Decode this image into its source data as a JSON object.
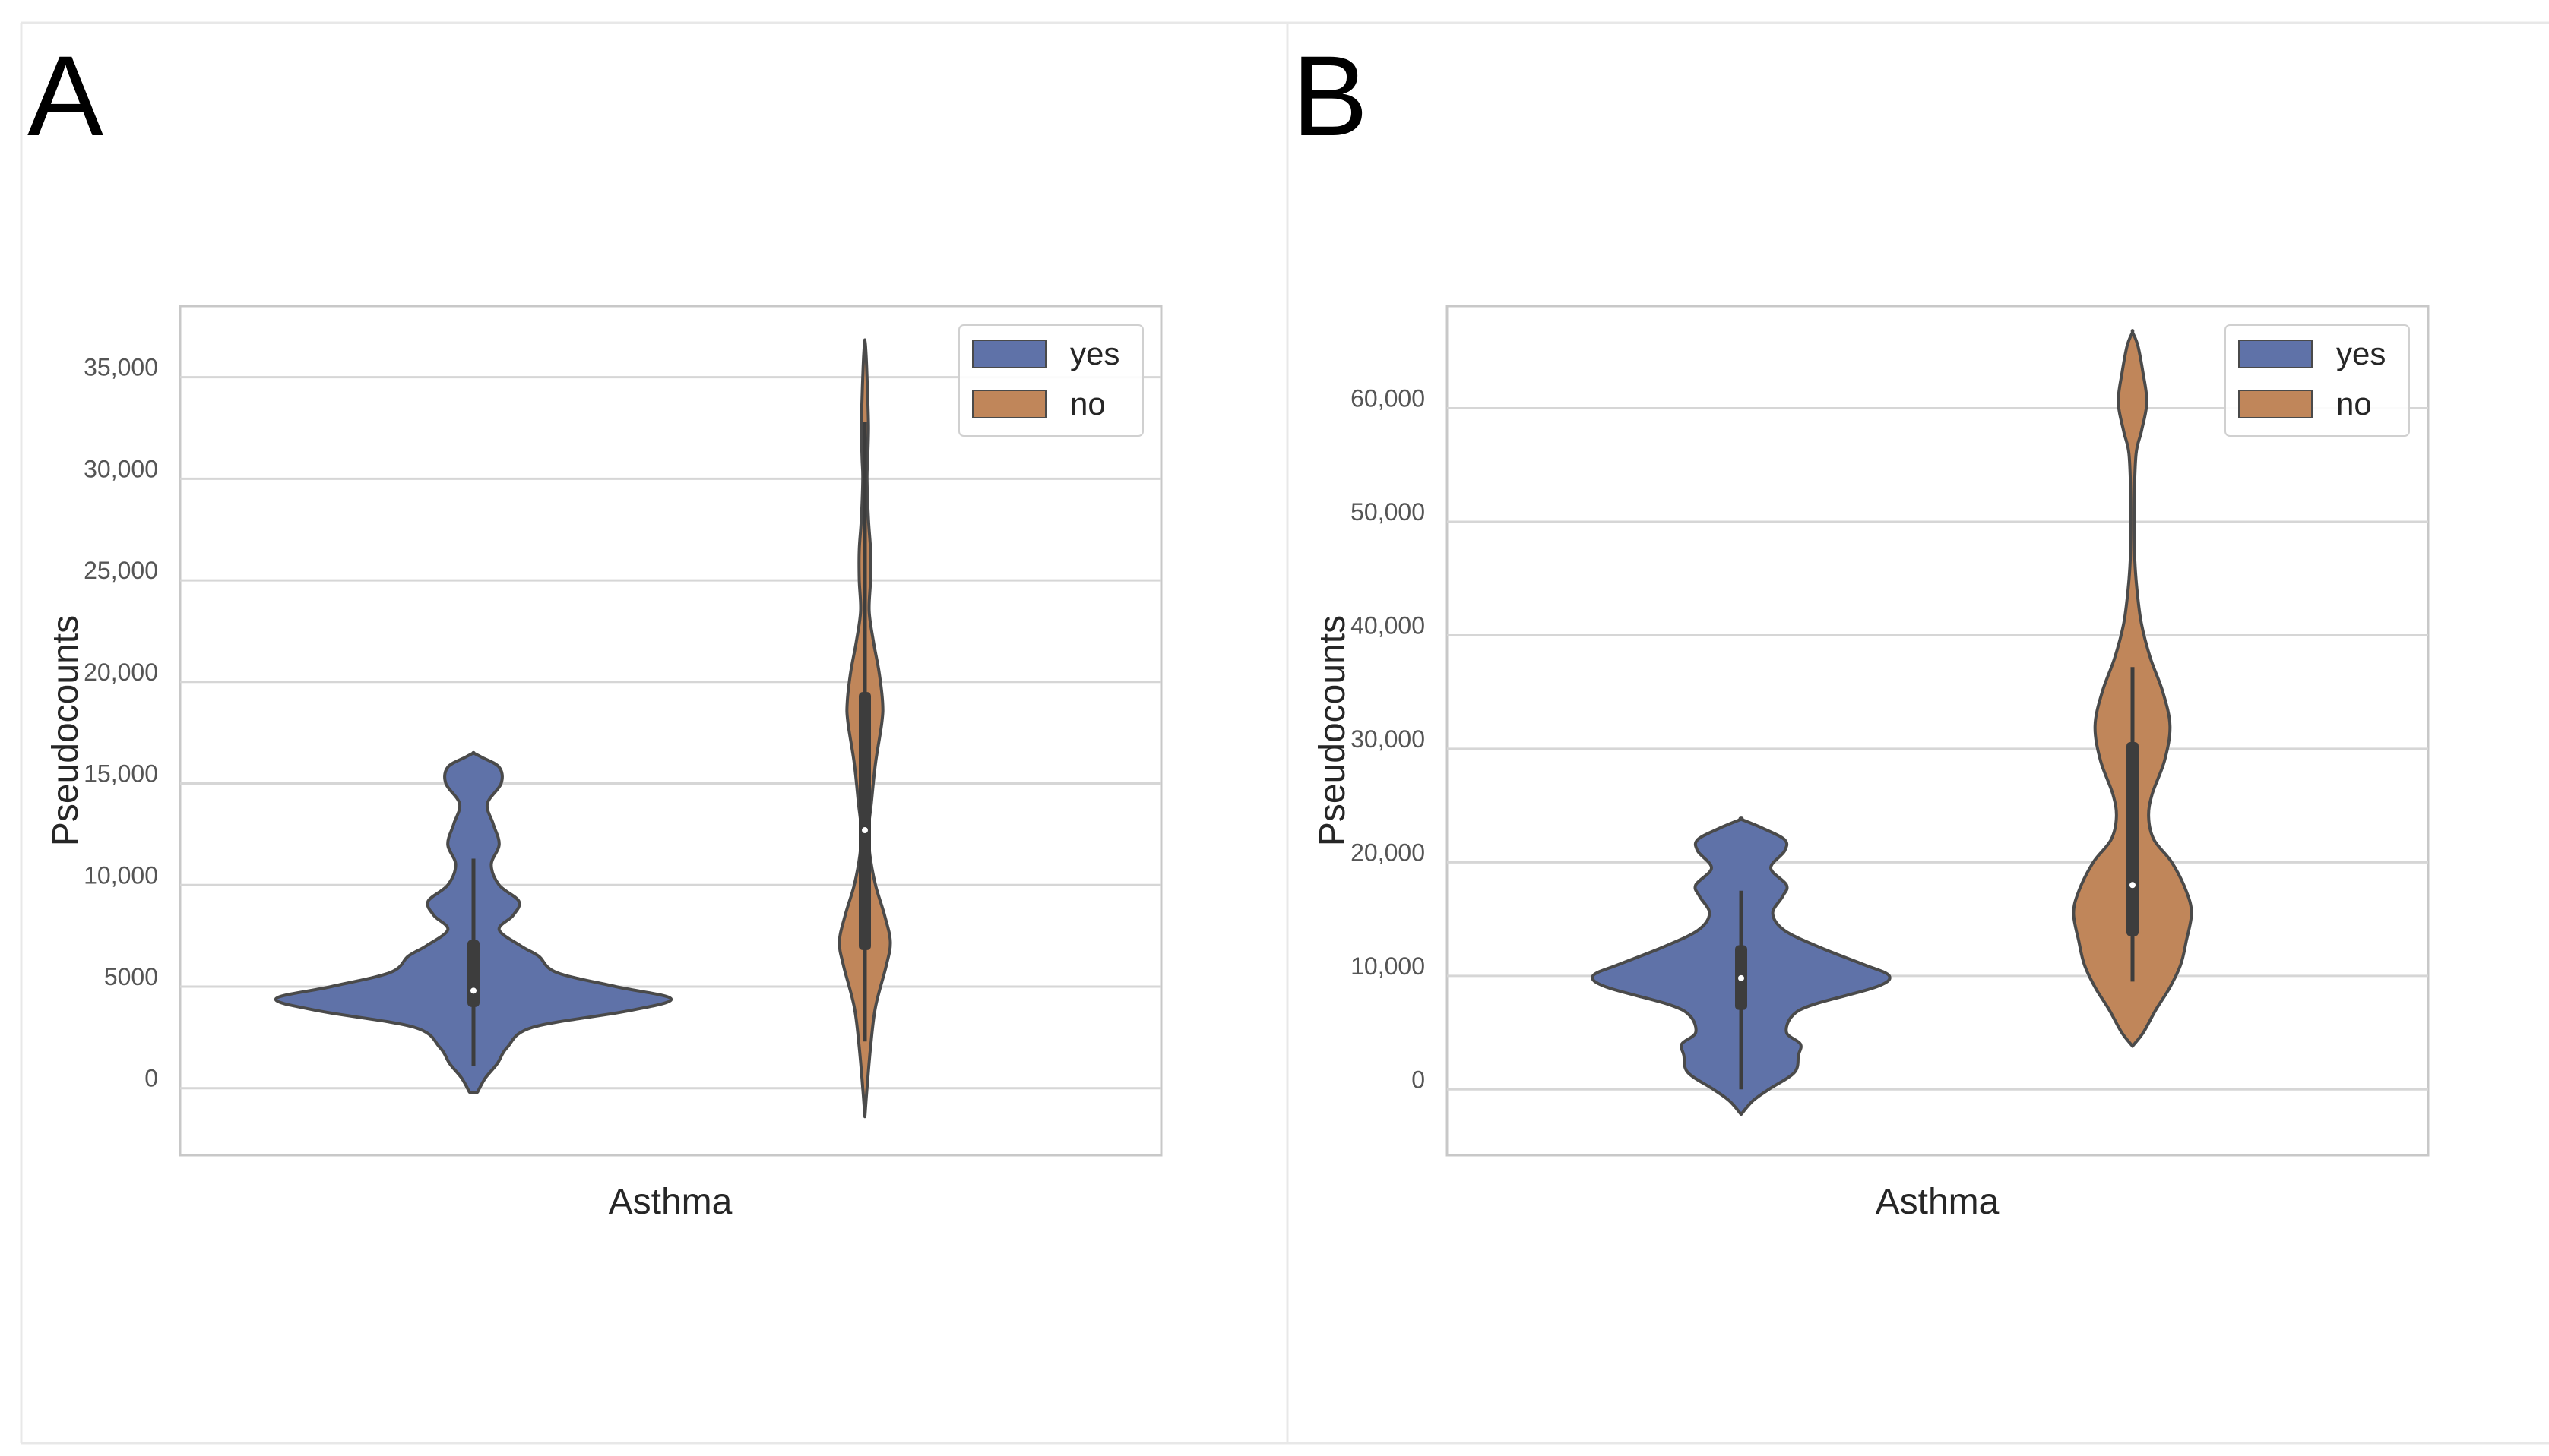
{
  "colors": {
    "yes": "#5f72a8",
    "no": "#c0865a",
    "edge": "#4a4a4a",
    "grid": "#d6d6d6",
    "frame": "#c8c8c8"
  },
  "chart_data": [
    {
      "panel": "A",
      "type": "violin",
      "xlabel": "Asthma",
      "ylabel": "Pseudocounts",
      "ylim": [
        -3300,
        38500
      ],
      "yticks": [
        0,
        5000,
        10000,
        15000,
        20000,
        25000,
        30000,
        35000
      ],
      "ytick_labels": [
        "0",
        "5000",
        "10,000",
        "15,000",
        "20,000",
        "25,000",
        "30,000",
        "35,000"
      ],
      "grid": true,
      "legend": {
        "position": "top-right",
        "entries": [
          "yes",
          "no"
        ]
      },
      "series": [
        {
          "name": "yes",
          "min": 1100,
          "q1": 4000,
          "median": 4800,
          "q3": 7300,
          "max": 11300,
          "range": [
            -200,
            16500
          ],
          "density": [
            [
              -200,
              0.02
            ],
            [
              500,
              0.06
            ],
            [
              1200,
              0.12
            ],
            [
              2000,
              0.17
            ],
            [
              3000,
              0.3
            ],
            [
              3800,
              0.78
            ],
            [
              4400,
              1.0
            ],
            [
              5000,
              0.72
            ],
            [
              5700,
              0.42
            ],
            [
              6500,
              0.33
            ],
            [
              7000,
              0.24
            ],
            [
              7800,
              0.13
            ],
            [
              8500,
              0.2
            ],
            [
              9200,
              0.23
            ],
            [
              10000,
              0.13
            ],
            [
              11000,
              0.09
            ],
            [
              12000,
              0.13
            ],
            [
              13000,
              0.1
            ],
            [
              14000,
              0.07
            ],
            [
              15000,
              0.14
            ],
            [
              15800,
              0.13
            ],
            [
              16300,
              0.04
            ],
            [
              16500,
              0.0
            ]
          ]
        },
        {
          "name": "no",
          "min": 2300,
          "q1": 6800,
          "median": 12700,
          "q3": 19500,
          "max": 32800,
          "range": [
            -1400,
            36800
          ],
          "density": [
            [
              -1400,
              0.0
            ],
            [
              0,
              0.03
            ],
            [
              2000,
              0.08
            ],
            [
              4000,
              0.15
            ],
            [
              6000,
              0.3
            ],
            [
              7200,
              0.36
            ],
            [
              8500,
              0.28
            ],
            [
              10000,
              0.15
            ],
            [
              11500,
              0.07
            ],
            [
              12700,
              0.05
            ],
            [
              14000,
              0.09
            ],
            [
              16000,
              0.15
            ],
            [
              18000,
              0.24
            ],
            [
              19000,
              0.25
            ],
            [
              20500,
              0.2
            ],
            [
              22000,
              0.12
            ],
            [
              23500,
              0.06
            ],
            [
              25000,
              0.08
            ],
            [
              26500,
              0.08
            ],
            [
              28000,
              0.05
            ],
            [
              30000,
              0.03
            ],
            [
              31000,
              0.04
            ],
            [
              32500,
              0.05
            ],
            [
              34000,
              0.04
            ],
            [
              35500,
              0.025
            ],
            [
              36500,
              0.01
            ],
            [
              36800,
              0.0
            ]
          ]
        }
      ]
    },
    {
      "panel": "B",
      "type": "violin",
      "xlabel": "Asthma",
      "ylabel": "Pseudocounts",
      "ylim": [
        -5800,
        69000
      ],
      "yticks": [
        0,
        10000,
        20000,
        30000,
        40000,
        50000,
        60000
      ],
      "ytick_labels": [
        "0",
        "10,000",
        "20,000",
        "30,000",
        "40,000",
        "50,000",
        "60,000"
      ],
      "grid": true,
      "legend": {
        "position": "top-right",
        "entries": [
          "yes",
          "no"
        ]
      },
      "series": [
        {
          "name": "yes",
          "min": 0,
          "q1": 7000,
          "median": 9800,
          "q3": 12700,
          "max": 17500,
          "range": [
            -2200,
            23800
          ],
          "density": [
            [
              -2200,
              0.0
            ],
            [
              -1000,
              0.06
            ],
            [
              0,
              0.14
            ],
            [
              1500,
              0.27
            ],
            [
              3000,
              0.29
            ],
            [
              4000,
              0.3
            ],
            [
              5000,
              0.23
            ],
            [
              6500,
              0.26
            ],
            [
              7500,
              0.37
            ],
            [
              9000,
              0.68
            ],
            [
              10000,
              0.75
            ],
            [
              11000,
              0.62
            ],
            [
              12500,
              0.4
            ],
            [
              14000,
              0.22
            ],
            [
              15500,
              0.16
            ],
            [
              17000,
              0.21
            ],
            [
              18000,
              0.23
            ],
            [
              19500,
              0.15
            ],
            [
              21000,
              0.22
            ],
            [
              22000,
              0.22
            ],
            [
              23000,
              0.11
            ],
            [
              23800,
              0.0
            ]
          ]
        },
        {
          "name": "no",
          "min": 9500,
          "q1": 13500,
          "median": 18000,
          "q3": 30600,
          "max": 37200,
          "range": [
            3800,
            66700
          ],
          "density": [
            [
              3800,
              0.0
            ],
            [
              5000,
              0.06
            ],
            [
              7000,
              0.13
            ],
            [
              9000,
              0.21
            ],
            [
              11000,
              0.27
            ],
            [
              13000,
              0.3
            ],
            [
              15500,
              0.33
            ],
            [
              17500,
              0.3
            ],
            [
              20000,
              0.22
            ],
            [
              22000,
              0.12
            ],
            [
              24000,
              0.09
            ],
            [
              26000,
              0.11
            ],
            [
              29000,
              0.18
            ],
            [
              32000,
              0.21
            ],
            [
              35000,
              0.17
            ],
            [
              38000,
              0.1
            ],
            [
              41000,
              0.05
            ],
            [
              44000,
              0.025
            ],
            [
              47000,
              0.012
            ],
            [
              52000,
              0.01
            ],
            [
              56000,
              0.02
            ],
            [
              58000,
              0.05
            ],
            [
              60500,
              0.08
            ],
            [
              63000,
              0.06
            ],
            [
              65500,
              0.03
            ],
            [
              66700,
              0.0
            ]
          ]
        }
      ]
    }
  ]
}
